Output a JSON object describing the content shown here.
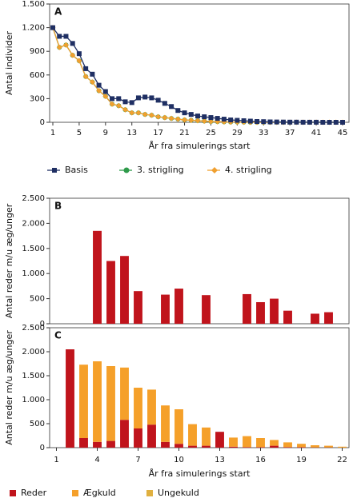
{
  "chart_data": [
    {
      "type": "line",
      "panel": "A",
      "xlabel": "År fra simulerings start",
      "ylabel": "Antal individer",
      "x": [
        1,
        2,
        3,
        4,
        5,
        6,
        7,
        8,
        9,
        10,
        11,
        12,
        13,
        14,
        15,
        16,
        17,
        18,
        19,
        20,
        21,
        22,
        23,
        24,
        25,
        26,
        27,
        28,
        29,
        30,
        31,
        32,
        33,
        34,
        35,
        36,
        37,
        38,
        39,
        40,
        41,
        42,
        43,
        44,
        45
      ],
      "xlim": [
        1,
        45
      ],
      "xticks": [
        1,
        5,
        9,
        13,
        17,
        21,
        25,
        29,
        33,
        37,
        41,
        45
      ],
      "ylim": [
        0,
        1500
      ],
      "yticks": [
        0,
        300,
        600,
        900,
        {
          "value": 1200,
          "label": "1.200"
        },
        {
          "value": 1500,
          "label": "1.500"
        }
      ],
      "series": [
        {
          "name": "Basis",
          "color": "#1f2f63",
          "marker": "square",
          "values": [
            1200,
            1090,
            1090,
            1000,
            870,
            680,
            610,
            470,
            390,
            300,
            300,
            260,
            250,
            310,
            320,
            310,
            280,
            240,
            200,
            150,
            120,
            100,
            80,
            70,
            60,
            50,
            40,
            30,
            25,
            20,
            15,
            10,
            8,
            5,
            4,
            3,
            2,
            2,
            1,
            1,
            1,
            0,
            0,
            0,
            0
          ]
        },
        {
          "name": "3. strigling",
          "color": "#2e9a4a",
          "marker": "circle",
          "values": [
            1200,
            950,
            980,
            850,
            780,
            580,
            510,
            400,
            330,
            230,
            210,
            160,
            120,
            120,
            100,
            90,
            70,
            60,
            50,
            40,
            30,
            25,
            20,
            15,
            10,
            8,
            5,
            3,
            2,
            1,
            0,
            0,
            0,
            0,
            0,
            0,
            0,
            0,
            0,
            0,
            0,
            0,
            0,
            0,
            0
          ]
        },
        {
          "name": "4. strigling",
          "color": "#f0a030",
          "marker": "diamond",
          "values": [
            1200,
            950,
            980,
            850,
            780,
            580,
            510,
            400,
            330,
            230,
            210,
            160,
            120,
            120,
            100,
            90,
            70,
            60,
            50,
            40,
            30,
            25,
            20,
            15,
            10,
            8,
            5,
            3,
            2,
            1,
            0,
            0,
            0,
            0,
            0,
            0,
            0,
            0,
            0,
            0,
            0,
            0,
            0,
            0,
            0
          ]
        }
      ]
    },
    {
      "type": "bar",
      "panel": "B",
      "ylabel": "Antal reder m/u æg/unger",
      "color": "#c0141c",
      "categories": [
        null,
        null,
        null,
        null,
        null,
        null,
        null,
        null,
        null,
        null,
        null,
        null,
        null,
        null,
        null,
        null,
        null,
        null,
        null,
        null,
        null,
        null
      ],
      "values": [
        0,
        0,
        0,
        1850,
        1250,
        1350,
        650,
        0,
        580,
        700,
        0,
        570,
        0,
        0,
        590,
        430,
        500,
        260,
        0,
        200,
        230,
        0
      ],
      "ylim": [
        0,
        2500
      ],
      "yticks": [
        0,
        500,
        {
          "value": 1000,
          "label": "1.000"
        },
        {
          "value": 1500,
          "label": "1.500"
        },
        {
          "value": 2000,
          "label": "2.000"
        },
        {
          "value": 2500,
          "label": "2.500"
        }
      ]
    },
    {
      "type": "stacked-bar",
      "panel": "C",
      "ylabel": "Antal reder m/u æg/unger",
      "xlabel": "År fra simulerings start",
      "categories": [
        "1",
        null,
        null,
        "4",
        null,
        null,
        "7",
        null,
        null,
        "10",
        null,
        null,
        "13",
        null,
        null,
        "16",
        null,
        null,
        "19",
        null,
        null,
        "22"
      ],
      "ylim": [
        0,
        2500
      ],
      "yticks": [
        0,
        500,
        {
          "value": 1000,
          "label": "1.000"
        },
        {
          "value": 1500,
          "label": "1.500"
        },
        {
          "value": 2000,
          "label": "2.000"
        },
        {
          "value": 2500,
          "label": "2.500"
        }
      ],
      "series": [
        {
          "name": "Reder",
          "color": "#c0141c",
          "values": [
            0,
            2050,
            200,
            120,
            140,
            580,
            400,
            480,
            120,
            80,
            40,
            40,
            330,
            20,
            10,
            10,
            40,
            10,
            10,
            5,
            5,
            0
          ]
        },
        {
          "name": "Ægkuld",
          "color": "#f5a02a",
          "values": [
            0,
            0,
            1530,
            1680,
            1560,
            1090,
            850,
            730,
            760,
            720,
            450,
            380,
            0,
            190,
            230,
            190,
            120,
            100,
            70,
            45,
            35,
            20
          ]
        },
        {
          "name": "Ungekuld",
          "color": "#e0b040",
          "values": [
            0,
            0,
            0,
            0,
            0,
            0,
            0,
            0,
            0,
            0,
            0,
            0,
            0,
            0,
            0,
            0,
            0,
            0,
            0,
            0,
            0,
            0
          ]
        }
      ]
    }
  ]
}
